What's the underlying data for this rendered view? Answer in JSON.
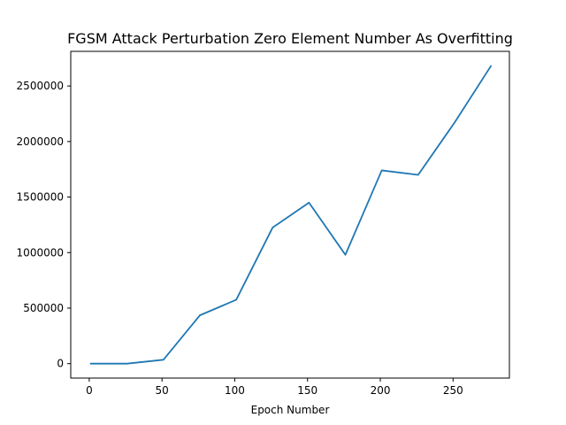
{
  "chart_data": {
    "type": "line",
    "title": "FGSM Attack Perturbation Zero Element Number As Overfitting",
    "xlabel": "Epoch Number",
    "ylabel": "",
    "xlim": [
      -12.7,
      288.7
    ],
    "ylim": [
      -130000,
      2812000
    ],
    "x_ticks": [
      0,
      50,
      100,
      150,
      200,
      250
    ],
    "y_ticks": [
      0,
      500000,
      1000000,
      1500000,
      2000000,
      2500000
    ],
    "grid": false,
    "series": [
      {
        "color": "#1f77b4",
        "x": [
          1,
          26,
          51,
          76,
          101,
          126,
          151,
          176,
          201,
          226,
          251,
          276
        ],
        "y": [
          0,
          0,
          35000,
          435000,
          575000,
          1225000,
          1450000,
          980000,
          1740000,
          1700000,
          2170000,
          2680000
        ]
      }
    ]
  }
}
